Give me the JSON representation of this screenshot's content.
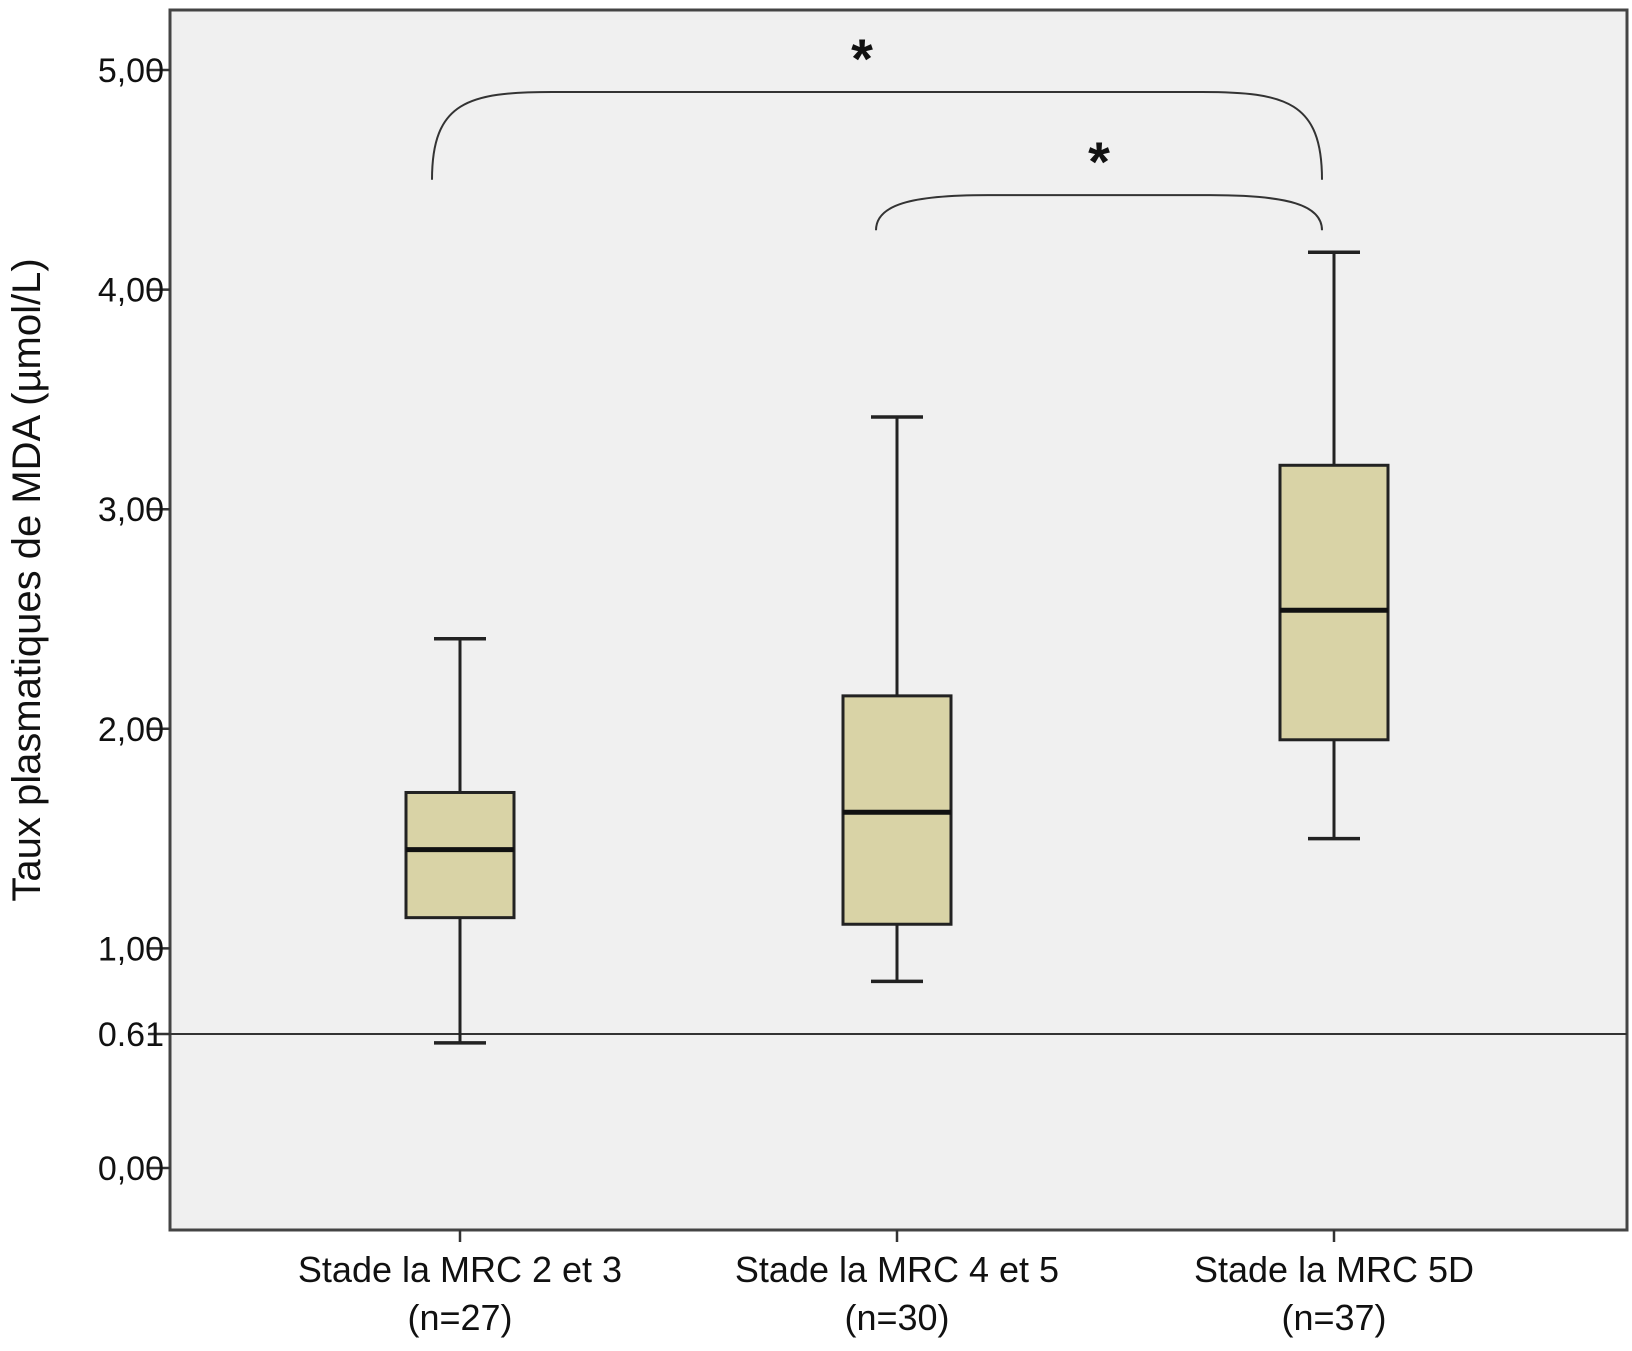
{
  "chart_data": {
    "type": "boxplot",
    "title": "",
    "ylabel": "Taux plasmatiques de MDA (µmol/L)",
    "xlabel": "",
    "ylim": [
      -0.28,
      5.28
    ],
    "yticks": [
      {
        "value": 0.0,
        "label": "0,00"
      },
      {
        "value": 0.61,
        "label": "0.61"
      },
      {
        "value": 1.0,
        "label": "1,00"
      },
      {
        "value": 2.0,
        "label": "2,00"
      },
      {
        "value": 3.0,
        "label": "3,00"
      },
      {
        "value": 4.0,
        "label": "4,00"
      },
      {
        "value": 5.0,
        "label": "5,00"
      }
    ],
    "categories": [
      {
        "label": "Stade la MRC 2 et 3",
        "n_label": "(n=27)"
      },
      {
        "label": "Stade la MRC 4 et 5",
        "n_label": "(n=30)"
      },
      {
        "label": "Stade la MRC 5D",
        "n_label": "(n=37)"
      }
    ],
    "boxes": [
      {
        "whisker_low": 0.57,
        "q1": 1.14,
        "median": 1.45,
        "q3": 1.71,
        "whisker_high": 2.41
      },
      {
        "whisker_low": 0.85,
        "q1": 1.11,
        "median": 1.62,
        "q3": 2.15,
        "whisker_high": 3.42
      },
      {
        "whisker_low": 1.5,
        "q1": 1.95,
        "median": 2.54,
        "q3": 3.2,
        "whisker_high": 4.17
      }
    ],
    "reference_line": {
      "value": 0.61
    },
    "significance": [
      {
        "from": 0,
        "to": 2,
        "label": "*",
        "level": 4.9
      },
      {
        "from": 1,
        "to": 2,
        "label": "*",
        "level": 4.43
      }
    ],
    "grid": false,
    "legend": "none",
    "colors": {
      "box_fill": "#d9d3a6",
      "plot_bg": "#f0f0f0",
      "stroke": "#222222"
    }
  }
}
